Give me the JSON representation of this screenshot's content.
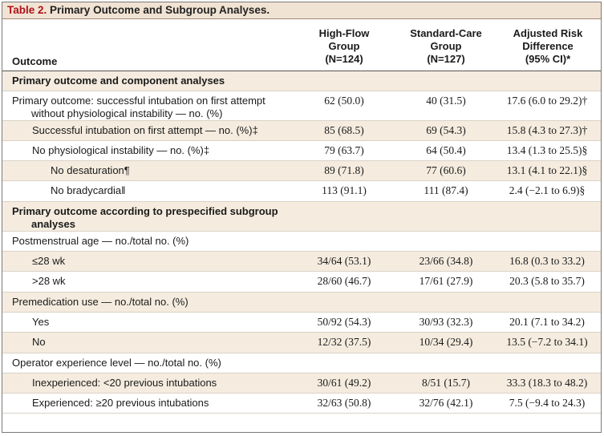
{
  "table": {
    "title_number": "Table 2.",
    "title_text": " Primary Outcome and Subgroup Analyses.",
    "headers": {
      "outcome": "Outcome",
      "col1": [
        "High-Flow",
        "Group",
        "(N=124)"
      ],
      "col2": [
        "Standard-Care",
        "Group",
        "(N=127)"
      ],
      "col3": [
        "Adjusted Risk",
        "Difference",
        "(95% CI)*"
      ]
    },
    "rows": [
      {
        "label": "Primary outcome and component analyses",
        "label2": "",
        "v1": "",
        "v2": "",
        "v3": ""
      },
      {
        "label": "Primary outcome: successful intubation on first attempt",
        "label2": "without physiological instability — no. (%)",
        "v1": "62 (50.0)",
        "v2": "40 (31.5)",
        "v3": "17.6 (6.0 to 29.2)†"
      },
      {
        "label": "Successful intubation on first attempt — no. (%)‡",
        "label2": "",
        "v1": "85 (68.5)",
        "v2": "69 (54.3)",
        "v3": "15.8 (4.3 to 27.3)†"
      },
      {
        "label": "No physiological instability — no. (%)‡",
        "label2": "",
        "v1": "79 (63.7)",
        "v2": "64 (50.4)",
        "v3": "13.4 (1.3 to 25.5)§"
      },
      {
        "label": "No desaturation¶",
        "label2": "",
        "v1": "89 (71.8)",
        "v2": "77 (60.6)",
        "v3": "13.1 (4.1 to 22.1)§"
      },
      {
        "label": "No bradycardia‖",
        "label2": "",
        "v1": "113 (91.1)",
        "v2": "111 (87.4)",
        "v3": "2.4 (−2.1 to 6.9)§"
      },
      {
        "label": "Primary outcome according to prespecified subgroup",
        "label2": "analyses",
        "v1": "",
        "v2": "",
        "v3": ""
      },
      {
        "label": "Postmenstrual age — no./total no. (%)",
        "label2": "",
        "v1": "",
        "v2": "",
        "v3": ""
      },
      {
        "label": "≤28 wk",
        "label2": "",
        "v1": "34/64 (53.1)",
        "v2": "23/66 (34.8)",
        "v3": "16.8 (0.3 to 33.2)"
      },
      {
        "label": ">28 wk",
        "label2": "",
        "v1": "28/60 (46.7)",
        "v2": "17/61 (27.9)",
        "v3": "20.3 (5.8 to 35.7)"
      },
      {
        "label": "Premedication use — no./total no. (%)",
        "label2": "",
        "v1": "",
        "v2": "",
        "v3": ""
      },
      {
        "label": "Yes",
        "label2": "",
        "v1": "50/92 (54.3)",
        "v2": "30/93 (32.3)",
        "v3": "20.1 (7.1 to 34.2)"
      },
      {
        "label": "No",
        "label2": "",
        "v1": "12/32 (37.5)",
        "v2": "10/34 (29.4)",
        "v3": "13.5 (−7.2 to 34.1)"
      },
      {
        "label": "Operator experience level — no./total no. (%)",
        "label2": "",
        "v1": "",
        "v2": "",
        "v3": ""
      },
      {
        "label": "Inexperienced: <20 previous intubations",
        "label2": "",
        "v1": "30/61 (49.2)",
        "v2": "8/51 (15.7)",
        "v3": "33.3 (18.3 to 48.2)"
      },
      {
        "label": "Experienced: ≥20 previous intubations",
        "label2": "",
        "v1": "32/63 (50.8)",
        "v2": "32/76 (42.1)",
        "v3": "7.5 (−9.4 to 24.3)"
      }
    ]
  },
  "colors": {
    "title_background": "#f1e3d3",
    "title_number": "#b0131b",
    "shaded_row": "#f5ecdf"
  }
}
